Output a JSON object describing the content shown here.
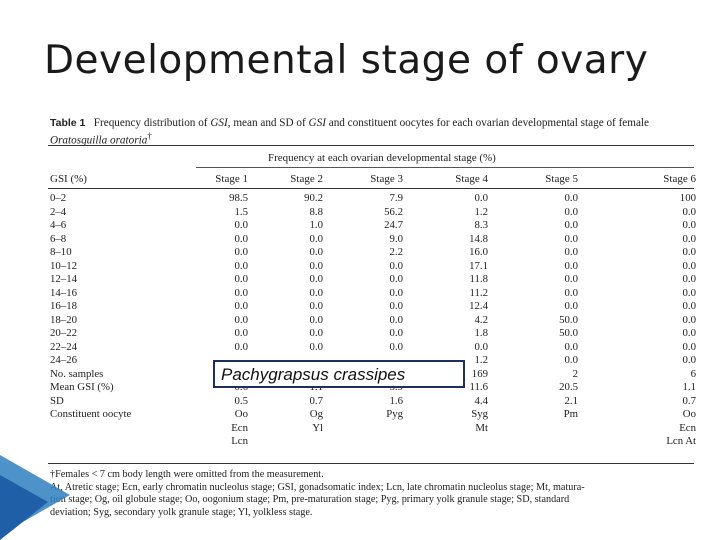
{
  "slide_title": "Developmental stage of ovary",
  "table": {
    "label": "Table 1",
    "caption_parts": {
      "a": "Frequency distribution of ",
      "b": "GSI",
      "c": ", mean and SD of ",
      "d": "GSI",
      "e": " and constituent oocytes for each ovarian developmental stage of female ",
      "f": "Oratosquilla oratoria",
      "g": "†"
    },
    "spanner": "Frequency at each ovarian developmental stage (%)",
    "columns": [
      "GSI (%)",
      "Stage 1",
      "Stage 2",
      "Stage 3",
      "Stage 4",
      "Stage 5",
      "Stage 6"
    ],
    "rows": [
      [
        "0–2",
        "98.5",
        "90.2",
        "7.9",
        "0.0",
        "0.0",
        "100"
      ],
      [
        "2–4",
        "1.5",
        "8.8",
        "56.2",
        "1.2",
        "0.0",
        "0.0"
      ],
      [
        "4–6",
        "0.0",
        "1.0",
        "24.7",
        "8.3",
        "0.0",
        "0.0"
      ],
      [
        "6–8",
        "0.0",
        "0.0",
        "9.0",
        "14.8",
        "0.0",
        "0.0"
      ],
      [
        "8–10",
        "0.0",
        "0.0",
        "2.2",
        "16.0",
        "0.0",
        "0.0"
      ],
      [
        "10–12",
        "0.0",
        "0.0",
        "0.0",
        "17.1",
        "0.0",
        "0.0"
      ],
      [
        "12–14",
        "0.0",
        "0.0",
        "0.0",
        "11.8",
        "0.0",
        "0.0"
      ],
      [
        "14–16",
        "0.0",
        "0.0",
        "0.0",
        "11.2",
        "0.0",
        "0.0"
      ],
      [
        "16–18",
        "0.0",
        "0.0",
        "0.0",
        "12.4",
        "0.0",
        "0.0"
      ],
      [
        "18–20",
        "0.0",
        "0.0",
        "0.0",
        "4.2",
        "50.0",
        "0.0"
      ],
      [
        "20–22",
        "0.0",
        "0.0",
        "0.0",
        "1.8",
        "50.0",
        "0.0"
      ],
      [
        "22–24",
        "0.0",
        "0.0",
        "0.0",
        "0.0",
        "0.0",
        "0.0"
      ],
      [
        "24–26",
        "",
        "",
        "",
        "1.2",
        "0.0",
        "0.0"
      ],
      [
        "No. samples",
        "",
        "",
        "",
        "169",
        "2",
        "6"
      ],
      [
        "Mean GSI (%)",
        "0.6",
        "1.1",
        "3.9",
        "11.6",
        "20.5",
        "1.1"
      ],
      [
        "SD",
        "0.5",
        "0.7",
        "1.6",
        "4.4",
        "2.1",
        "0.7"
      ],
      [
        "Constituent oocyte",
        "Oo",
        "Og",
        "Pyg",
        "Syg",
        "Pm",
        "Oo"
      ],
      [
        "",
        "Ecn",
        "Yl",
        "",
        "Mt",
        "",
        "Ecn"
      ],
      [
        "",
        "Lcn",
        "",
        "",
        "",
        "",
        "Lcn At"
      ]
    ],
    "footnotes": [
      "†Females < 7 cm body length were omitted from the measurement.",
      "At, Atretic stage; Ecn, early chromatin nucleolus stage; GSI, gonadsomatic index; Lcn, late chromatin nucleolus stage; Mt, matura-",
      "tion stage; Og, oil globule stage; Oo, oogonium stage; Pm, pre-maturation stage; Pyg, primary yolk granule stage; SD, standard",
      "deviation; Syg, secondary yolk granule stage; Yl, yolkless stage."
    ]
  },
  "overlay_label": "Pachygrapsus crassipes",
  "colors": {
    "accent_blue": "#1f5fa8",
    "box_border": "#1f2f5f"
  }
}
